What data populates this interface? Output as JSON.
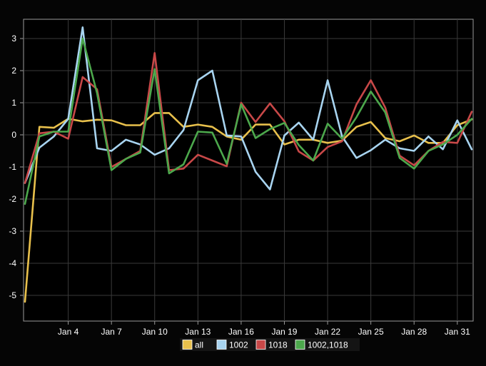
{
  "chart_data": {
    "type": "line",
    "title": "",
    "xlabel": "",
    "ylabel": "",
    "x": [
      "Jan 1",
      "Jan 2",
      "Jan 3",
      "Jan 4",
      "Jan 5",
      "Jan 6",
      "Jan 7",
      "Jan 8",
      "Jan 9",
      "Jan 10",
      "Jan 11",
      "Jan 12",
      "Jan 13",
      "Jan 14",
      "Jan 15",
      "Jan 16",
      "Jan 17",
      "Jan 18",
      "Jan 19",
      "Jan 20",
      "Jan 21",
      "Jan 22",
      "Jan 23",
      "Jan 24",
      "Jan 25",
      "Jan 26",
      "Jan 27",
      "Jan 28",
      "Jan 29",
      "Jan 30",
      "Jan 31",
      "Feb 1"
    ],
    "x_ticks": [
      "Jan 4",
      "Jan 7",
      "Jan 10",
      "Jan 13",
      "Jan 16",
      "Jan 19",
      "Jan 22",
      "Jan 25",
      "Jan 28",
      "Jan 31"
    ],
    "y_ticks": [
      3,
      2,
      1,
      0,
      -1,
      -2,
      -3,
      -4,
      -5
    ],
    "ylim": [
      -5.8,
      3.6
    ],
    "grid": true,
    "legend_position": "bottom-center",
    "series": [
      {
        "name": "all",
        "color": "#e8c04c",
        "values": [
          -5.2,
          0.25,
          0.22,
          0.5,
          0.42,
          0.47,
          0.45,
          0.3,
          0.3,
          0.68,
          0.68,
          0.25,
          0.32,
          0.25,
          -0.05,
          -0.15,
          0.32,
          0.32,
          -0.3,
          -0.15,
          -0.15,
          -0.25,
          -0.18,
          0.25,
          0.4,
          -0.1,
          -0.2,
          -0.02,
          -0.25,
          -0.25,
          0.3,
          0.48
        ]
      },
      {
        "name": "1002",
        "color": "#a8d4f0",
        "values": [
          -1.5,
          -0.4,
          -0.05,
          0.5,
          3.35,
          -0.42,
          -0.5,
          -0.15,
          -0.3,
          -0.62,
          -0.42,
          0.15,
          1.7,
          2.0,
          -0.02,
          -0.05,
          -1.15,
          -1.7,
          -0.02,
          0.38,
          -0.15,
          1.7,
          -0.05,
          -0.72,
          -0.48,
          -0.15,
          -0.42,
          -0.5,
          -0.05,
          -0.45,
          0.45,
          -0.45
        ]
      },
      {
        "name": "1018",
        "color": "#c84848",
        "values": [
          -1.5,
          0.05,
          0.1,
          -0.12,
          1.8,
          1.42,
          -1.0,
          -0.75,
          -0.5,
          2.55,
          -1.1,
          -1.05,
          -0.62,
          -0.8,
          -0.98,
          1.0,
          0.4,
          0.98,
          0.42,
          -0.52,
          -0.8,
          -0.38,
          -0.2,
          0.95,
          1.7,
          0.85,
          -0.65,
          -0.95,
          -0.5,
          -0.22,
          -0.25,
          0.72
        ]
      },
      {
        "name": "1002,1018",
        "color": "#4ca84c",
        "values": [
          -2.15,
          -0.05,
          0.1,
          0.1,
          3.0,
          1.3,
          -1.1,
          -0.75,
          -0.55,
          2.05,
          -1.2,
          -0.92,
          0.1,
          0.07,
          -0.9,
          0.95,
          -0.1,
          0.18,
          0.37,
          -0.32,
          -0.8,
          0.35,
          -0.12,
          0.55,
          1.35,
          0.7,
          -0.72,
          -1.05,
          -0.5,
          -0.3,
          0.0,
          0.5
        ]
      }
    ]
  }
}
